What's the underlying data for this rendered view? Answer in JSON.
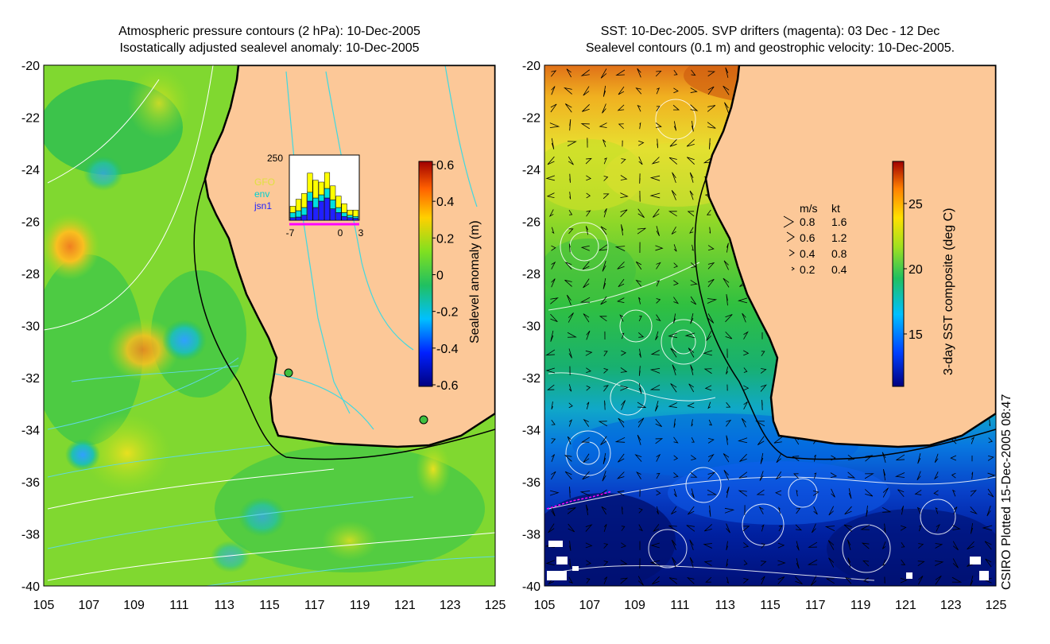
{
  "left_map": {
    "title_line1": "Atmospheric pressure contours (2 hPa): 10-Dec-2005",
    "title_line2": "Isostatically adjusted sealevel anomaly: 10-Dec-2005",
    "colorbar": {
      "label": "Sealevel anomaly (m)",
      "ticks": [
        "0.6",
        "0.4",
        "0.2",
        "0",
        "-0.2",
        "-0.4",
        "-0.6"
      ],
      "colors": [
        "#00007f",
        "#0020ff",
        "#00c0ff",
        "#20c060",
        "#80e020",
        "#ffd000",
        "#ff6000",
        "#a00000"
      ]
    },
    "inset_histogram": {
      "ymax_label": "250",
      "legend": [
        "GFO",
        "env",
        "jsn1"
      ],
      "legend_colors": [
        "#ffff00",
        "#00e0e0",
        "#2020ff"
      ],
      "x_ticks": [
        "-7",
        "0",
        "3"
      ]
    }
  },
  "right_map": {
    "title_line1": "SST: 10-Dec-2005. SVP drifters (magenta): 03 Dec - 12 Dec",
    "title_line2": "Sealevel contours (0.1 m) and geostrophic velocity: 10-Dec-2005.",
    "colorbar": {
      "label": "3-day SST composite (deg C)",
      "ticks": [
        "25",
        "20",
        "15"
      ],
      "colors": [
        "#00007f",
        "#0040ff",
        "#00c0ff",
        "#20c060",
        "#a0e020",
        "#ffe000",
        "#ff8000",
        "#a00000"
      ]
    },
    "speed_legend": {
      "header_ms": "m/s",
      "header_kt": "kt",
      "rows": [
        {
          "ms": "0.8",
          "kt": "1.6"
        },
        {
          "ms": "0.6",
          "kt": "1.2"
        },
        {
          "ms": "0.4",
          "kt": "0.8"
        },
        {
          "ms": "0.2",
          "kt": "0.4"
        }
      ]
    }
  },
  "axes": {
    "y_ticks": [
      "-20",
      "-22",
      "-24",
      "-26",
      "-28",
      "-30",
      "-32",
      "-34",
      "-36",
      "-38",
      "-40"
    ],
    "x_ticks": [
      "105",
      "107",
      "109",
      "111",
      "113",
      "115",
      "117",
      "119",
      "121",
      "123",
      "125"
    ]
  },
  "footer_note": "CSIRO Plotted 15-Dec-2005 08:47",
  "colors": {
    "land": "#fcc898",
    "coast": "#000000",
    "drifter": "#ff00ff"
  }
}
